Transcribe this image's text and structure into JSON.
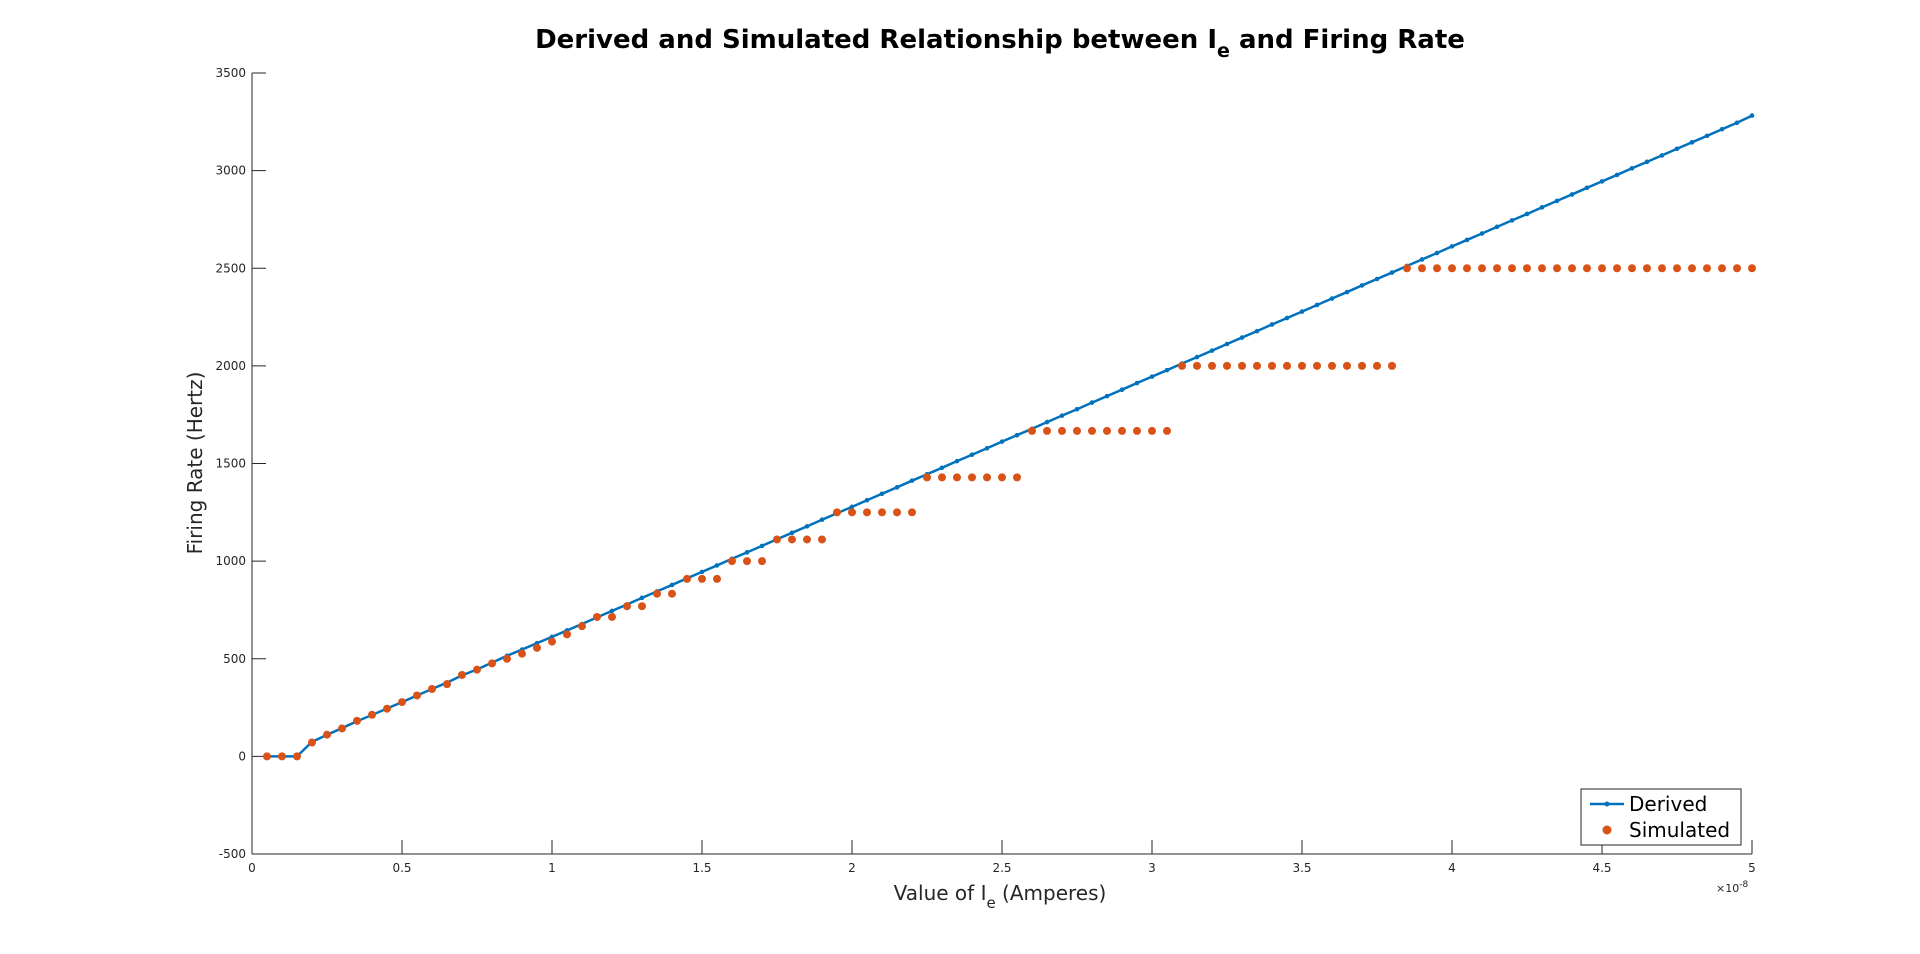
{
  "chart_data": {
    "type": "line",
    "title_parts": {
      "before": "Derived and Simulated Relationship between I",
      "sub": "e",
      "after": " and Firing Rate"
    },
    "xlabel_parts": {
      "before": "Value of I",
      "sub": "e",
      "after": " (Amperes)"
    },
    "ylabel": "Firing Rate (Hertz)",
    "x_exponent": {
      "base": "×10",
      "power": "-8"
    },
    "xlim": [
      0,
      5
    ],
    "ylim": [
      -500,
      3500
    ],
    "x_ticks": [
      0,
      0.5,
      1,
      1.5,
      2,
      2.5,
      3,
      3.5,
      4,
      4.5,
      5
    ],
    "x_tick_labels": [
      "0",
      "0.5",
      "1",
      "1.5",
      "2",
      "2.5",
      "3",
      "3.5",
      "4",
      "4.5",
      "5"
    ],
    "y_ticks": [
      -500,
      0,
      500,
      1000,
      1500,
      2000,
      2500,
      3000,
      3500
    ],
    "y_tick_labels": [
      "-500",
      "0",
      "500",
      "1000",
      "1500",
      "2000",
      "2500",
      "3000",
      "3500"
    ],
    "grid": false,
    "legend_position": "bottom-right",
    "colors": {
      "derived": "#0072BD",
      "simulated": "#D95319"
    },
    "series": [
      {
        "name": "Derived",
        "style": "line-with-dot-markers",
        "x": [
          0.05,
          0.1,
          0.15,
          0.2,
          0.25,
          0.3,
          0.35,
          0.4,
          0.45,
          0.5,
          0.55,
          0.6,
          0.65,
          0.7,
          0.75,
          0.8,
          0.85,
          0.9,
          0.95,
          1,
          1.05,
          1.1,
          1.15,
          1.2,
          1.25,
          1.3,
          1.35,
          1.4,
          1.45,
          1.5,
          1.55,
          1.6,
          1.65,
          1.7,
          1.75,
          1.8,
          1.85,
          1.9,
          1.95,
          2,
          2.05,
          2.1,
          2.15,
          2.2,
          2.25,
          2.3,
          2.35,
          2.4,
          2.45,
          2.5,
          2.55,
          2.6,
          2.65,
          2.7,
          2.75,
          2.8,
          2.85,
          2.9,
          2.95,
          3,
          3.05,
          3.1,
          3.15,
          3.2,
          3.25,
          3.3,
          3.35,
          3.4,
          3.45,
          3.5,
          3.55,
          3.6,
          3.65,
          3.7,
          3.75,
          3.8,
          3.85,
          3.9,
          3.95,
          4,
          4.05,
          4.1,
          4.15,
          4.2,
          4.25,
          4.3,
          4.35,
          4.4,
          4.45,
          4.5,
          4.55,
          4.6,
          4.65,
          4.7,
          4.75,
          4.8,
          4.85,
          4.9,
          4.95,
          5
        ],
        "y": [
          0,
          0,
          0,
          75,
          110,
          145,
          180,
          212,
          245,
          278,
          312,
          345,
          378,
          415,
          445,
          480,
          515,
          547,
          580,
          612,
          645,
          678,
          712,
          745,
          778,
          812,
          845,
          878,
          912,
          945,
          978,
          1012,
          1045,
          1078,
          1112,
          1145,
          1178,
          1212,
          1245,
          1278,
          1312,
          1345,
          1378,
          1412,
          1445,
          1478,
          1512,
          1545,
          1578,
          1612,
          1645,
          1678,
          1712,
          1745,
          1778,
          1812,
          1845,
          1878,
          1912,
          1945,
          1978,
          2012,
          2045,
          2078,
          2112,
          2145,
          2178,
          2212,
          2245,
          2278,
          2312,
          2345,
          2378,
          2412,
          2445,
          2478,
          2512,
          2545,
          2578,
          2612,
          2645,
          2678,
          2712,
          2745,
          2778,
          2812,
          2845,
          2878,
          2912,
          2945,
          2978,
          3012,
          3045,
          3078,
          3112,
          3145,
          3178,
          3212,
          3245,
          3282
        ]
      },
      {
        "name": "Simulated",
        "style": "dot-markers",
        "x": [
          0.05,
          0.1,
          0.15,
          0.2,
          0.25,
          0.3,
          0.35,
          0.4,
          0.45,
          0.5,
          0.55,
          0.6,
          0.65,
          0.7,
          0.75,
          0.8,
          0.85,
          0.9,
          0.95,
          1,
          1.05,
          1.1,
          1.15,
          1.2,
          1.25,
          1.3,
          1.35,
          1.4,
          1.45,
          1.5,
          1.55,
          1.6,
          1.65,
          1.7,
          1.75,
          1.8,
          1.85,
          1.9,
          1.95,
          2,
          2.05,
          2.1,
          2.15,
          2.2,
          2.25,
          2.3,
          2.35,
          2.4,
          2.45,
          2.5,
          2.55,
          2.6,
          2.65,
          2.7,
          2.75,
          2.8,
          2.85,
          2.9,
          2.95,
          3,
          3.05,
          3.1,
          3.15,
          3.2,
          3.25,
          3.3,
          3.35,
          3.4,
          3.45,
          3.5,
          3.55,
          3.6,
          3.65,
          3.7,
          3.75,
          3.8,
          3.85,
          3.9,
          3.95,
          4,
          4.05,
          4.1,
          4.15,
          4.2,
          4.25,
          4.3,
          4.35,
          4.4,
          4.45,
          4.5,
          4.55,
          4.6,
          4.65,
          4.7,
          4.75,
          4.8,
          4.85,
          4.9,
          4.95,
          5
        ],
        "y": [
          0,
          0,
          0,
          71,
          111,
          143,
          182,
          213,
          244,
          278,
          312,
          345,
          370,
          417,
          444,
          476,
          500,
          526,
          556,
          588,
          625,
          667,
          714,
          714,
          769,
          769,
          833,
          833,
          909,
          909,
          909,
          1000,
          1000,
          1000,
          1111,
          1111,
          1111,
          1111,
          1250,
          1250,
          1250,
          1250,
          1250,
          1250,
          1429,
          1429,
          1429,
          1429,
          1429,
          1429,
          1429,
          1667,
          1667,
          1667,
          1667,
          1667,
          1667,
          1667,
          1667,
          1667,
          1667,
          2000,
          2000,
          2000,
          2000,
          2000,
          2000,
          2000,
          2000,
          2000,
          2000,
          2000,
          2000,
          2000,
          2000,
          2000,
          2500,
          2500,
          2500,
          2500,
          2500,
          2500,
          2500,
          2500,
          2500,
          2500,
          2500,
          2500,
          2500,
          2500,
          2500,
          2500,
          2500,
          2500,
          2500,
          2500,
          2500,
          2500,
          2500,
          2500
        ]
      }
    ]
  }
}
